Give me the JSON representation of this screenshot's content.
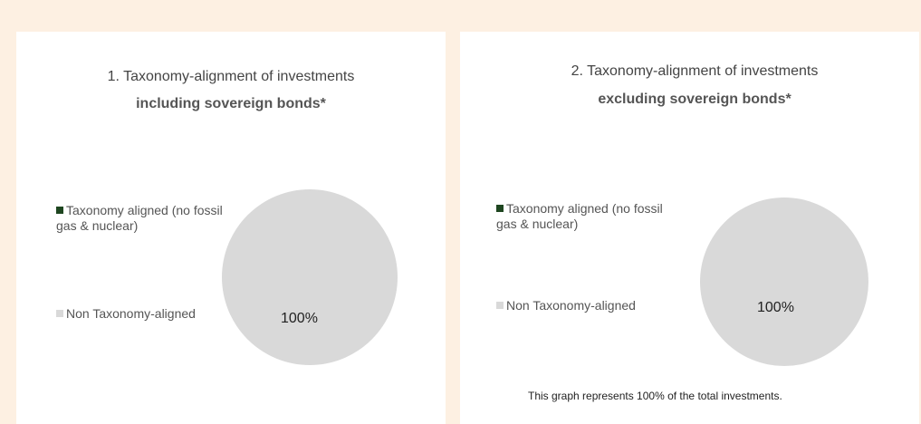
{
  "chart_data": [
    {
      "type": "pie",
      "title": "1. Taxonomy-alignment of investments",
      "subtitle": "including sovereign bonds*",
      "categories": [
        "Taxonomy aligned (no fossil gas & nuclear)",
        "Non Taxonomy-aligned"
      ],
      "values": [
        0,
        100
      ],
      "value_labels": [
        null,
        "100%"
      ],
      "colors": [
        "#1e4620",
        "#d9d9d9"
      ]
    },
    {
      "type": "pie",
      "title": "2. Taxonomy-alignment of investments",
      "subtitle": "excluding sovereign bonds*",
      "categories": [
        "Taxonomy aligned (no fossil gas & nuclear)",
        "Non Taxonomy-aligned"
      ],
      "values": [
        0,
        100
      ],
      "value_labels": [
        null,
        "100%"
      ],
      "colors": [
        "#1e4620",
        "#d9d9d9"
      ],
      "note": "This graph represents 100% of the total investments."
    }
  ]
}
